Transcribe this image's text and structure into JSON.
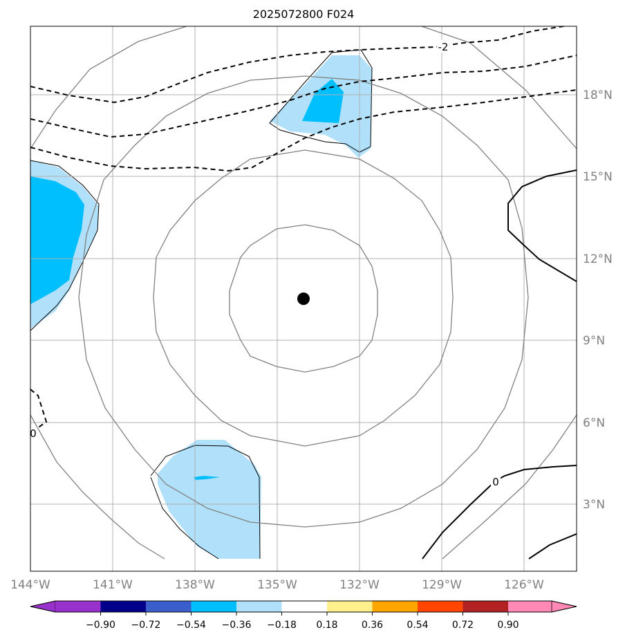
{
  "title": "2025072800 F024",
  "map": {
    "lon_range": [
      -144,
      -125.5
    ],
    "lat_range": [
      0.4,
      19.7
    ],
    "grid": true,
    "center_marker": {
      "lon": -134.0,
      "lat": 10.5
    },
    "lon_labels": [
      {
        "lon": -144,
        "text": "144°W"
      },
      {
        "lon": -141,
        "text": "141°W"
      },
      {
        "lon": -138,
        "text": "138°W"
      },
      {
        "lon": -135,
        "text": "135°W"
      },
      {
        "lon": -132,
        "text": "132°W"
      },
      {
        "lon": -129,
        "text": "129°W"
      },
      {
        "lon": -126,
        "text": "126°W"
      }
    ],
    "lat_labels": [
      {
        "lat": 18,
        "text": "18°N"
      },
      {
        "lat": 15,
        "text": "15°N"
      },
      {
        "lat": 12,
        "text": "12°N"
      },
      {
        "lat": 9,
        "text": "9°N"
      },
      {
        "lat": 6,
        "text": "6°N"
      },
      {
        "lat": 3,
        "text": "3°N"
      }
    ],
    "contour_labels": [
      {
        "text": "-2",
        "lon": -129.0,
        "lat": 19.2
      },
      {
        "text": "0",
        "lon": -128.2,
        "lat": 4.8
      },
      {
        "text": "0",
        "lon": -143.9,
        "lat": 5.5
      }
    ]
  },
  "colorbar": {
    "levels": [
      "−0.90",
      "−0.72",
      "−0.54",
      "−0.36",
      "−0.18",
      "0.18",
      "0.36",
      "0.54",
      "0.72",
      "0.90"
    ],
    "colors": [
      "#9932cc",
      "#00008b",
      "#3a5fcd",
      "#00bfff",
      "#b0e0fa",
      "#ffffff",
      "#fff08c",
      "#ffa500",
      "#ff4500",
      "#b22222",
      "#ff88b4"
    ]
  },
  "colors": {
    "grid": "#b0b0b0",
    "circles": "#808080",
    "tick_text": "#808080",
    "fill_light": "#b0e0fa",
    "fill_mid": "#00bfff"
  }
}
